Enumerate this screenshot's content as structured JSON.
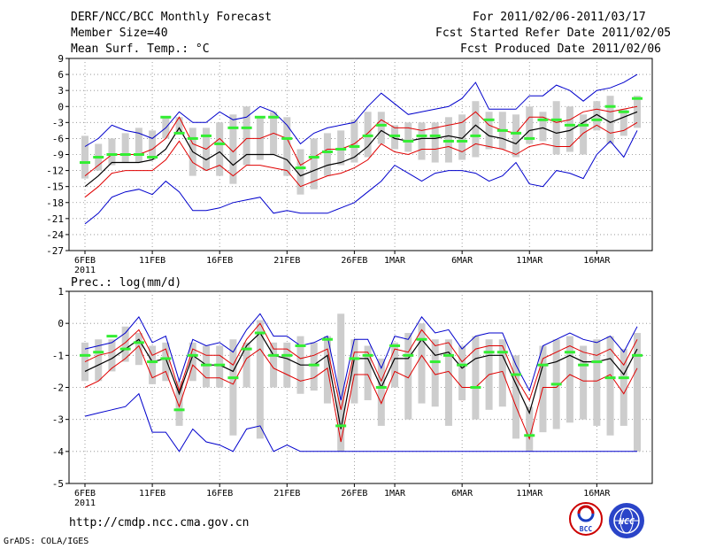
{
  "header": {
    "title": "DERF/NCC/BCC Monthly Forecast",
    "member_size": "Member Size=40",
    "variable1": "Mean Surf. Temp.: °C",
    "for_range": "For 2011/02/06-2011/03/17",
    "refer_date": "Fcst Started Refer Date 2011/02/05",
    "produced_date": "Fcst Produced Date 2011/02/06"
  },
  "footer": {
    "url": "http://cmdp.ncc.cma.gov.cn",
    "grads": "GrADS: COLA/IGES",
    "logo1_text": "BCC",
    "logo2_text": "NCC"
  },
  "colors": {
    "mean": "#000000",
    "spread": "#e00000",
    "range": "#0000cc",
    "box": "#cdcdcd",
    "obs": "#33ee33"
  },
  "chart_data": [
    {
      "type": "line",
      "title": "Mean Surf. Temp.: °C",
      "ylim": [
        -27,
        9
      ],
      "yticks": [
        9,
        6,
        3,
        0,
        -3,
        -6,
        -9,
        -12,
        -15,
        -18,
        -21,
        -24,
        -27
      ],
      "xlim": [
        0,
        40
      ],
      "xticks": [
        {
          "i": 0,
          "label": "6FEB",
          "sub": "2011"
        },
        {
          "i": 5,
          "label": "11FEB"
        },
        {
          "i": 10,
          "label": "16FEB"
        },
        {
          "i": 15,
          "label": "21FEB"
        },
        {
          "i": 20,
          "label": "26FEB"
        },
        {
          "i": 23,
          "label": "1MAR"
        },
        {
          "i": 28,
          "label": "6MAR"
        },
        {
          "i": 33,
          "label": "11MAR"
        },
        {
          "i": 38,
          "label": "16MAR"
        }
      ],
      "series": [
        {
          "name": "max",
          "values": [
            -7.5,
            -6,
            -3.5,
            -4.5,
            -5,
            -6,
            -4,
            -1,
            -3,
            -3,
            -1,
            -2.5,
            -2,
            0,
            -1,
            -3.5,
            -7,
            -5,
            -4,
            -3.5,
            -3,
            0,
            2.5,
            0.5,
            -1.5,
            -1,
            -0.5,
            0,
            1.5,
            4.5,
            -0.5,
            -0.5,
            -0.5,
            2,
            2,
            4,
            3,
            1,
            3,
            3.5,
            4.5,
            6
          ]
        },
        {
          "name": "upper",
          "values": [
            -13,
            -11,
            -9,
            -9,
            -9,
            -8,
            -6,
            -2,
            -7,
            -8,
            -6,
            -8.5,
            -6,
            -6,
            -5,
            -6,
            -11,
            -9.5,
            -8,
            -8,
            -7,
            -5,
            -2.5,
            -4,
            -4,
            -4.5,
            -4,
            -3.5,
            -3,
            -1,
            -3.5,
            -4.5,
            -5,
            -2,
            -2,
            -3,
            -2.5,
            -1,
            -0.5,
            -1,
            -0.5,
            0
          ]
        },
        {
          "name": "mean",
          "values": [
            -15,
            -13,
            -10.5,
            -10.5,
            -10.5,
            -10,
            -8,
            -4,
            -8.5,
            -10,
            -8.5,
            -11,
            -9,
            -9,
            -9,
            -10,
            -13,
            -12,
            -11,
            -10.5,
            -9.5,
            -7.5,
            -4.5,
            -6,
            -6.5,
            -6,
            -6,
            -5.5,
            -6,
            -3.5,
            -5.5,
            -6,
            -7,
            -4.5,
            -4,
            -5,
            -4.5,
            -3,
            -1.5,
            -3,
            -2,
            -1
          ]
        },
        {
          "name": "lower",
          "values": [
            -17,
            -15,
            -12.5,
            -12,
            -12,
            -12,
            -10,
            -6.5,
            -10.5,
            -12,
            -11,
            -13,
            -11,
            -11,
            -11.5,
            -12,
            -15,
            -14,
            -13,
            -12.5,
            -11.5,
            -10,
            -7,
            -8.5,
            -9,
            -8,
            -8,
            -7.5,
            -8.5,
            -7,
            -7.5,
            -8,
            -9,
            -7.5,
            -7,
            -7.5,
            -7.5,
            -5,
            -3.5,
            -5,
            -4.5,
            -3
          ]
        },
        {
          "name": "min",
          "values": [
            -22,
            -20,
            -17,
            -16,
            -15.5,
            -16.5,
            -14,
            -16,
            -19.5,
            -19.5,
            -19,
            -18,
            -17.5,
            -17,
            -20,
            -19.5,
            -20,
            -20,
            -20,
            -19,
            -18,
            -16,
            -14,
            -11,
            -12.5,
            -14,
            -12.5,
            -12,
            -12,
            -12.5,
            -14,
            -13,
            -10.5,
            -14.5,
            -15,
            -12,
            -12.5,
            -13.5,
            -9,
            -6.5,
            -9.5,
            -4.5
          ]
        },
        {
          "name": "obs",
          "values": [
            -10.5,
            -9.5,
            -9,
            -9,
            -9,
            -9.5,
            -2,
            -5,
            -6,
            -5.5,
            -7,
            -4,
            -4,
            -2,
            -2,
            -6,
            -11.5,
            -9.5,
            -8.5,
            -8,
            -7.5,
            -5.5,
            -3.5,
            -5.5,
            -6.5,
            -5.5,
            -5.5,
            -6.5,
            -6.5,
            -5.5,
            -2.5,
            -4.5,
            -5,
            -6,
            -2.5,
            -2.5,
            -3.5,
            -3.5,
            -2.5,
            0,
            -1,
            1.5
          ]
        }
      ],
      "box_range": {
        "low": [
          -13.5,
          -12,
          -11,
          -10.5,
          -10.5,
          -10,
          -6,
          -5,
          -13,
          -12,
          -13,
          -14.5,
          -11,
          -10,
          -9,
          -13,
          -16.5,
          -15.5,
          -13,
          -11,
          -10.5,
          -9.5,
          -7,
          -8,
          -8.5,
          -10,
          -10.5,
          -10.5,
          -10,
          -9.5,
          -8,
          -8,
          -9.5,
          -7,
          -6.5,
          -9,
          -8.5,
          -9,
          -4.5,
          -7,
          -5.5,
          -4
        ],
        "high": [
          -5.5,
          -7,
          -6,
          -5,
          -4,
          -4.5,
          -2,
          -2,
          -4,
          -4,
          -3,
          -1.5,
          0,
          -2,
          -1,
          -2,
          -8,
          -6,
          -5,
          -4.5,
          -2.5,
          -1,
          -1,
          -3.5,
          -3,
          -3,
          -3,
          -2,
          -1.5,
          1,
          -1,
          -1,
          -1.5,
          0,
          -1,
          1,
          0,
          -1.5,
          1,
          2,
          -0.5,
          2
        ]
      }
    },
    {
      "type": "line",
      "title": "Prec.: log(mm/d)",
      "ylim": [
        -5,
        1
      ],
      "yticks": [
        1,
        0,
        -1,
        -2,
        -3,
        -4,
        -5
      ],
      "xlim": [
        0,
        40
      ],
      "xticks": [
        {
          "i": 0,
          "label": "6FEB",
          "sub": "2011"
        },
        {
          "i": 5,
          "label": "11FEB"
        },
        {
          "i": 10,
          "label": "16FEB"
        },
        {
          "i": 15,
          "label": "21FEB"
        },
        {
          "i": 20,
          "label": "26FEB"
        },
        {
          "i": 23,
          "label": "1MAR"
        },
        {
          "i": 28,
          "label": "6MAR"
        },
        {
          "i": 33,
          "label": "11MAR"
        },
        {
          "i": 38,
          "label": "16MAR"
        }
      ],
      "series": [
        {
          "name": "max",
          "values": [
            -0.8,
            -0.7,
            -0.6,
            -0.3,
            0.2,
            -0.6,
            -0.4,
            -1.8,
            -0.5,
            -0.7,
            -0.6,
            -0.9,
            -0.2,
            0.3,
            -0.4,
            -0.4,
            -0.7,
            -0.6,
            -0.4,
            -2.4,
            -0.5,
            -0.5,
            -1.4,
            -0.4,
            -0.5,
            0.2,
            -0.3,
            -0.2,
            -0.8,
            -0.4,
            -0.3,
            -0.3,
            -1.3,
            -2.1,
            -0.7,
            -0.5,
            -0.3,
            -0.5,
            -0.6,
            -0.4,
            -0.9,
            -0.1
          ]
        },
        {
          "name": "upper",
          "values": [
            -1.2,
            -1.0,
            -0.9,
            -0.6,
            -0.2,
            -1.0,
            -0.8,
            -2.1,
            -0.8,
            -1.0,
            -1.0,
            -1.3,
            -0.5,
            0,
            -0.8,
            -0.8,
            -1.1,
            -1.0,
            -0.8,
            -2.7,
            -0.9,
            -0.9,
            -1.8,
            -0.8,
            -0.9,
            -0.2,
            -0.7,
            -0.6,
            -1.2,
            -0.8,
            -0.7,
            -0.7,
            -1.7,
            -2.4,
            -1.1,
            -0.9,
            -0.7,
            -0.9,
            -1.0,
            -0.8,
            -1.3,
            -0.5
          ]
        },
        {
          "name": "mean",
          "values": [
            -1.5,
            -1.3,
            -1.1,
            -0.8,
            -0.5,
            -1.2,
            -1.1,
            -2.2,
            -1.0,
            -1.3,
            -1.3,
            -1.5,
            -0.7,
            -0.3,
            -1.0,
            -1.1,
            -1.3,
            -1.3,
            -1.0,
            -3.3,
            -1.1,
            -1.1,
            -2.0,
            -1.1,
            -1.1,
            -0.5,
            -1.0,
            -0.9,
            -1.4,
            -1.1,
            -1.0,
            -1.0,
            -1.9,
            -2.8,
            -1.3,
            -1.2,
            -1.0,
            -1.2,
            -1.2,
            -1.1,
            -1.6,
            -0.8
          ]
        },
        {
          "name": "lower",
          "values": [
            -2.0,
            -1.8,
            -1.4,
            -1.1,
            -0.7,
            -1.7,
            -1.5,
            -2.6,
            -1.3,
            -1.7,
            -1.7,
            -1.9,
            -1.1,
            -0.8,
            -1.4,
            -1.6,
            -1.8,
            -1.7,
            -1.4,
            -3.7,
            -1.6,
            -1.6,
            -2.5,
            -1.5,
            -1.7,
            -1.0,
            -1.6,
            -1.5,
            -2.0,
            -2.0,
            -1.6,
            -1.5,
            -2.6,
            -3.6,
            -2.0,
            -2.0,
            -1.6,
            -1.8,
            -1.8,
            -1.6,
            -2.2,
            -1.4
          ]
        },
        {
          "name": "min",
          "values": [
            -2.9,
            -2.8,
            -2.7,
            -2.6,
            -2.2,
            -3.4,
            -3.4,
            -4.0,
            -3.3,
            -3.7,
            -3.8,
            -4.0,
            -3.3,
            -3.2,
            -4.0,
            -3.8,
            -4.0,
            -4.0,
            -4.0,
            -4.0,
            -4.0,
            -4.0,
            -4.0,
            -4.0,
            -4.0,
            -4.0,
            -4.0,
            -4.0,
            -4.0,
            -4.0,
            -4.0,
            -4.0,
            -4.0,
            -4.0,
            -4.0,
            -4.0,
            -4.0,
            -4.0,
            -4.0,
            -4.0,
            -4.0,
            -4.0
          ]
        },
        {
          "name": "obs",
          "values": [
            -1.0,
            -0.9,
            -0.4,
            -0.8,
            -0.6,
            -1.2,
            -1.1,
            -2.7,
            -1.0,
            -1.3,
            -1.3,
            -1.7,
            -0.8,
            -0.3,
            -1.0,
            -1.0,
            -0.7,
            -1.3,
            -0.5,
            -3.2,
            -1.1,
            -1.0,
            -2.0,
            -0.7,
            -1.0,
            -0.5,
            -1.2,
            -1.0,
            -1.3,
            -2.0,
            -0.9,
            -0.9,
            -1.6,
            -3.5,
            -1.3,
            -1.9,
            -0.9,
            -1.3,
            -1.2,
            -1.7,
            -1.7,
            -1.0
          ]
        }
      ],
      "box_range": {
        "low": [
          -1.8,
          -1.8,
          -1.5,
          -1.2,
          -1.3,
          -1.9,
          -1.8,
          -3.2,
          -1.8,
          -2.0,
          -2.0,
          -3.5,
          -2.0,
          -3.6,
          -2.0,
          -2.0,
          -2.2,
          -2.1,
          -2.5,
          -4.0,
          -2.5,
          -2.4,
          -3.2,
          -2.0,
          -3.0,
          -2.5,
          -2.6,
          -3.2,
          -2.4,
          -3.0,
          -2.7,
          -2.6,
          -3.6,
          -4.0,
          -3.4,
          -3.3,
          -3.1,
          -3.0,
          -3.2,
          -3.5,
          -3.2,
          -4.0
        ],
        "high": [
          -0.6,
          -0.5,
          -0.5,
          -0.1,
          -0.3,
          -0.7,
          -0.6,
          -1.8,
          -0.6,
          -0.7,
          -0.7,
          -0.5,
          -0.6,
          0.1,
          -0.6,
          -0.6,
          -0.4,
          -0.6,
          -0.4,
          0.3,
          -0.5,
          -0.7,
          -1.1,
          -0.6,
          -0.3,
          0.0,
          -0.5,
          -0.5,
          -0.7,
          -0.4,
          -0.5,
          -0.5,
          -1.0,
          -2.6,
          -0.7,
          -0.5,
          -0.4,
          -0.7,
          -0.5,
          -0.4,
          -0.8,
          -0.3
        ]
      }
    }
  ]
}
